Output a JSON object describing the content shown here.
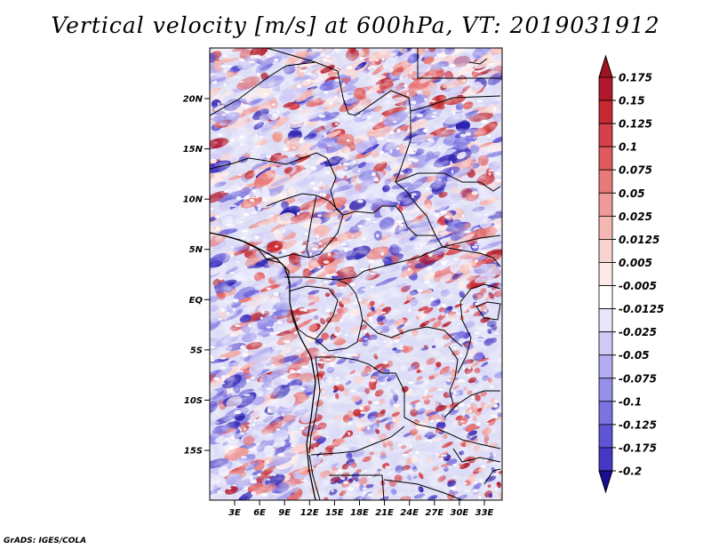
{
  "title": "Vertical velocity [m/s] at 600hPa, VT: 2019031912",
  "credit": "GrADS: IGES/COLA",
  "map": {
    "lat_labels": [
      {
        "lat": 20,
        "label": "20N"
      },
      {
        "lat": 15,
        "label": "15N"
      },
      {
        "lat": 10,
        "label": "10N"
      },
      {
        "lat": 5,
        "label": "5N"
      },
      {
        "lat": 0,
        "label": "EQ"
      },
      {
        "lat": -5,
        "label": "5S"
      },
      {
        "lat": -10,
        "label": "10S"
      },
      {
        "lat": -15,
        "label": "15S"
      }
    ],
    "lon_labels": [
      {
        "lon": 3,
        "label": "3E"
      },
      {
        "lon": 6,
        "label": "6E"
      },
      {
        "lon": 9,
        "label": "9E"
      },
      {
        "lon": 12,
        "label": "12E"
      },
      {
        "lon": 15,
        "label": "15E"
      },
      {
        "lon": 18,
        "label": "18E"
      },
      {
        "lon": 21,
        "label": "21E"
      },
      {
        "lon": 24,
        "label": "24E"
      },
      {
        "lon": 27,
        "label": "27E"
      },
      {
        "lon": 30,
        "label": "30E"
      },
      {
        "lon": 33,
        "label": "33E"
      }
    ]
  },
  "colorbar": {
    "levels": [
      {
        "label": "0.175",
        "color": "#b2182b"
      },
      {
        "label": "0.15",
        "color": "#c62a30"
      },
      {
        "label": "0.125",
        "color": "#d6404a"
      },
      {
        "label": "0.1",
        "color": "#e05a5d"
      },
      {
        "label": "0.075",
        "color": "#e87a78"
      },
      {
        "label": "0.05",
        "color": "#ef9a96"
      },
      {
        "label": "0.025",
        "color": "#f5b7b2"
      },
      {
        "label": "0.0125",
        "color": "#f9d3cf"
      },
      {
        "label": "0.005",
        "color": "#fdeae8"
      },
      {
        "label": "-0.005",
        "color": "#ffffff"
      },
      {
        "label": "-0.0125",
        "color": "#e8e6fb"
      },
      {
        "label": "-0.025",
        "color": "#cfcbf6"
      },
      {
        "label": "-0.05",
        "color": "#b3adf0"
      },
      {
        "label": "-0.075",
        "color": "#9690e9"
      },
      {
        "label": "-0.1",
        "color": "#7b73e0"
      },
      {
        "label": "-0.125",
        "color": "#5e55d4"
      },
      {
        "label": "-0.175",
        "color": "#4638c4"
      },
      {
        "label": "-0.2",
        "color": "#2c1fb0"
      }
    ],
    "top_color": "#a0141f",
    "bottom_color": "#1a0d96"
  }
}
